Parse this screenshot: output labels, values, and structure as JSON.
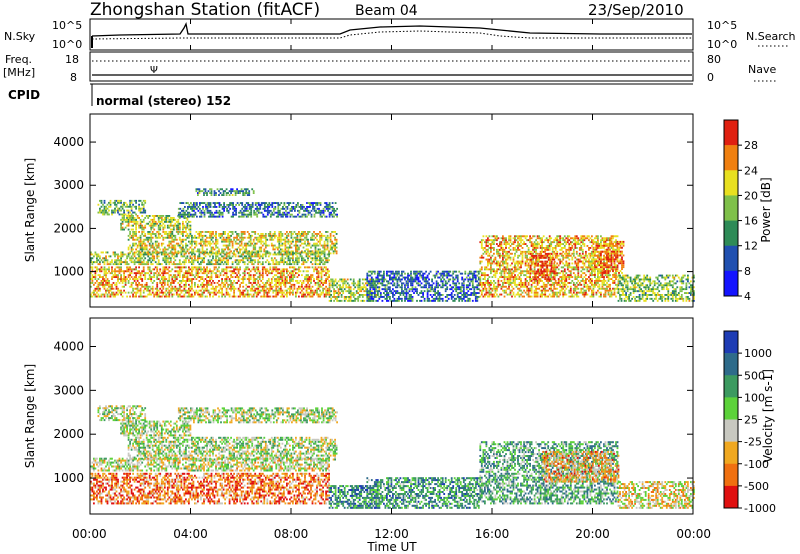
{
  "header": {
    "station": "Zhongshan Station (fitACF)",
    "beam": "Beam 04",
    "date": "23/Sep/2010",
    "nsky_label": "N.Sky",
    "nsearch_label": "N.Search",
    "freq_label_line1": "Freq.",
    "freq_label_line2": "[MHz]",
    "nave_label": "Nave",
    "cpid_label": "CPID",
    "cpid_value": "normal (stereo) 152",
    "nsky_ticks": [
      "10^5",
      "10^0"
    ],
    "nsearch_ticks": [
      "10^5",
      "10^0"
    ],
    "freq_ticks": [
      "18",
      "8"
    ],
    "nave_ticks": [
      "80",
      "0"
    ]
  },
  "chart_data": [
    {
      "type": "heatmap",
      "name": "power",
      "ylabel": "Slant Range [km]",
      "xlabel": "",
      "x_ticks": [
        "00:00",
        "04:00",
        "08:00",
        "12:00",
        "16:00",
        "20:00",
        "00:00"
      ],
      "y_ticks": [
        "1000",
        "2000",
        "3000",
        "4000"
      ],
      "xlim": [
        0,
        24
      ],
      "ylim": [
        180,
        4650
      ],
      "colorbar": {
        "label": "Power [dB]",
        "ticks": [
          "4",
          "8",
          "12",
          "16",
          "20",
          "24",
          "28"
        ],
        "range": [
          0,
          30
        ],
        "colors": [
          "#1414ff",
          "#2050b0",
          "#2e8b57",
          "#7fc04a",
          "#e8e020",
          "#f08010",
          "#e02010"
        ]
      },
      "clusters": [
        {
          "t": [
            0.3,
            2.2
          ],
          "r": [
            2300,
            2650
          ],
          "level": 0.45
        },
        {
          "t": [
            1.2,
            4.0
          ],
          "r": [
            1950,
            2300
          ],
          "level": 0.55
        },
        {
          "t": [
            1.5,
            9.8
          ],
          "r": [
            1400,
            1900
          ],
          "level": 0.6
        },
        {
          "t": [
            3.5,
            9.8
          ],
          "r": [
            2250,
            2600
          ],
          "level": 0.3
        },
        {
          "t": [
            4.2,
            6.5
          ],
          "r": [
            2750,
            2900
          ],
          "level": 0.35
        },
        {
          "t": [
            0.0,
            9.5
          ],
          "r": [
            1150,
            1450
          ],
          "level": 0.55
        },
        {
          "t": [
            0.0,
            9.5
          ],
          "r": [
            400,
            1100
          ],
          "level": 0.72
        },
        {
          "t": [
            9.5,
            11.5
          ],
          "r": [
            300,
            800
          ],
          "level": 0.55
        },
        {
          "t": [
            11.0,
            15.5
          ],
          "r": [
            300,
            1000
          ],
          "level": 0.25
        },
        {
          "t": [
            15.5,
            21.0
          ],
          "r": [
            400,
            1800
          ],
          "level": 0.7
        },
        {
          "t": [
            17.5,
            18.5
          ],
          "r": [
            800,
            1400
          ],
          "level": 0.9
        },
        {
          "t": [
            20.0,
            21.2
          ],
          "r": [
            900,
            1700
          ],
          "level": 0.8
        },
        {
          "t": [
            21.0,
            24.0
          ],
          "r": [
            300,
            900
          ],
          "level": 0.5
        }
      ]
    },
    {
      "type": "heatmap",
      "name": "velocity",
      "ylabel": "Slant Range [km]",
      "xlabel": "Time UT",
      "x_ticks": [
        "00:00",
        "04:00",
        "08:00",
        "12:00",
        "16:00",
        "20:00",
        "00:00"
      ],
      "y_ticks": [
        "1000",
        "2000",
        "3000",
        "4000"
      ],
      "xlim": [
        0,
        24
      ],
      "ylim": [
        180,
        4650
      ],
      "colorbar": {
        "label": "Velocity [m s-1]",
        "ticks": [
          "1000",
          "500",
          "100",
          "25",
          "-25",
          "-100",
          "-500",
          "-1000"
        ],
        "colors": [
          "#1e3cb4",
          "#2e6b8a",
          "#3c9a60",
          "#5cd23a",
          "#c8c8c0",
          "#f0a820",
          "#f07010",
          "#e01010"
        ]
      },
      "clusters": [
        {
          "t": [
            0.3,
            2.2
          ],
          "r": [
            2300,
            2650
          ],
          "level": 0.5
        },
        {
          "t": [
            1.2,
            4.0
          ],
          "r": [
            1950,
            2300
          ],
          "level": 0.5
        },
        {
          "t": [
            1.5,
            9.8
          ],
          "r": [
            1400,
            1900
          ],
          "level": 0.5
        },
        {
          "t": [
            3.5,
            9.8
          ],
          "r": [
            2250,
            2600
          ],
          "level": 0.5
        },
        {
          "t": [
            0.0,
            9.5
          ],
          "r": [
            1150,
            1450
          ],
          "level": 0.55
        },
        {
          "t": [
            0.0,
            9.5
          ],
          "r": [
            400,
            1100
          ],
          "level": 0.8
        },
        {
          "t": [
            9.5,
            11.5
          ],
          "r": [
            300,
            800
          ],
          "level": 0.25
        },
        {
          "t": [
            11.0,
            15.5
          ],
          "r": [
            300,
            1000
          ],
          "level": 0.3
        },
        {
          "t": [
            15.5,
            21.0
          ],
          "r": [
            400,
            1800
          ],
          "level": 0.35
        },
        {
          "t": [
            18.0,
            21.0
          ],
          "r": [
            900,
            1600
          ],
          "level": 0.7
        },
        {
          "t": [
            21.0,
            24.0
          ],
          "r": [
            300,
            900
          ],
          "level": 0.6
        }
      ]
    }
  ]
}
